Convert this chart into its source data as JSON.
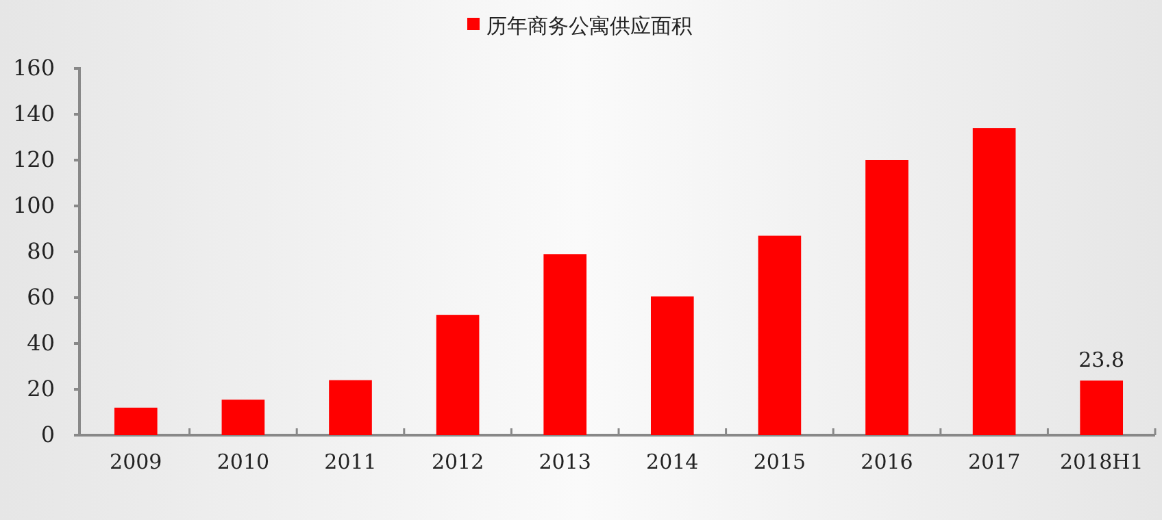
{
  "chart_data": {
    "type": "bar",
    "categories": [
      "2009",
      "2010",
      "2011",
      "2012",
      "2013",
      "2014",
      "2015",
      "2016",
      "2017",
      "2018H1"
    ],
    "series": [
      {
        "name": "历年商务公寓供应面积",
        "color": "#ff0000",
        "values": [
          12,
          15.5,
          24,
          52.5,
          79,
          60.5,
          87,
          120,
          134,
          23.8
        ],
        "value_labels": [
          null,
          null,
          null,
          null,
          null,
          null,
          null,
          null,
          null,
          "23.8"
        ]
      }
    ],
    "ylim": [
      0,
      160
    ],
    "yticks": [
      0,
      20,
      40,
      60,
      80,
      100,
      120,
      140,
      160
    ],
    "grid": false,
    "legend": "top"
  }
}
